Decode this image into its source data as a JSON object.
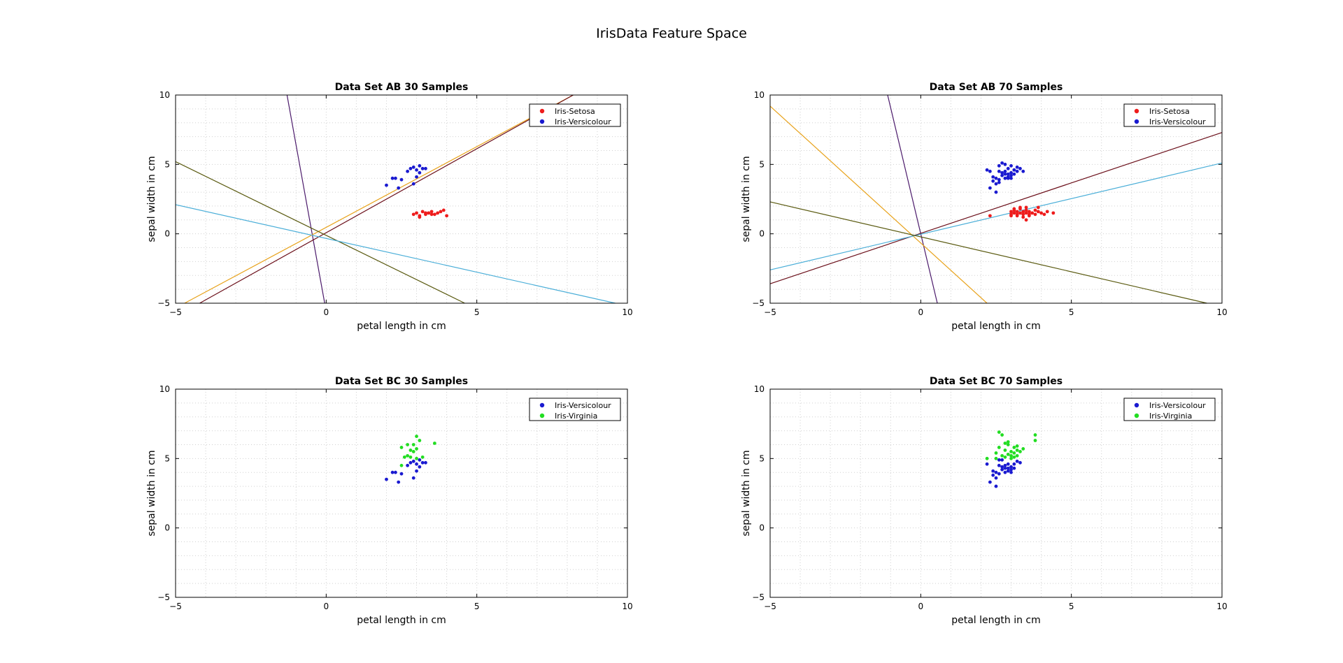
{
  "figure": {
    "title": "IrisData Feature Space",
    "colors": {
      "setosa": "#ee1c1c",
      "versicolour": "#1a1ad0",
      "virginia": "#22dd22",
      "line1": "#4b1a6b",
      "line2": "#e8a21a",
      "line3": "#6b0f1a",
      "line4": "#5a5a10",
      "line5": "#4aaed8"
    }
  },
  "chart_data": [
    {
      "type": "scatter",
      "title": "Data Set AB 30 Samples",
      "xlabel": "petal length in cm",
      "ylabel": "sepal width in cm",
      "xlim": [
        -5,
        10
      ],
      "ylim": [
        -5,
        10
      ],
      "xticks": [
        -5,
        0,
        5,
        10
      ],
      "yticks": [
        -5,
        0,
        5,
        10
      ],
      "grid": "minor-dotted",
      "legend": "top-right",
      "series": [
        {
          "name": "Iris-Setosa",
          "color": "#ee1c1c",
          "x": [
            2.9,
            3.0,
            3.1,
            3.2,
            3.3,
            3.4,
            3.5,
            3.6,
            3.7,
            3.8,
            3.9,
            4.0,
            3.1,
            3.3,
            3.5
          ],
          "y": [
            1.4,
            1.5,
            1.3,
            1.6,
            1.4,
            1.5,
            1.6,
            1.4,
            1.5,
            1.6,
            1.7,
            1.3,
            1.2,
            1.5,
            1.4
          ]
        },
        {
          "name": "Iris-Versicolour",
          "color": "#1a1ad0",
          "x": [
            2.0,
            2.2,
            2.3,
            2.4,
            2.7,
            2.8,
            2.9,
            3.0,
            3.0,
            3.1,
            3.2,
            3.3,
            2.5,
            2.9,
            3.1
          ],
          "y": [
            3.5,
            4.0,
            4.0,
            3.3,
            4.5,
            4.7,
            3.6,
            4.1,
            4.6,
            4.9,
            4.7,
            4.7,
            3.9,
            4.8,
            4.4
          ]
        }
      ],
      "lines": [
        {
          "color": "#4b1a6b",
          "p1": [
            -1.3,
            10
          ],
          "p2": [
            -0.05,
            -5
          ]
        },
        {
          "color": "#e8a21a",
          "p1": [
            -4.7,
            -5
          ],
          "p2": [
            8.2,
            10
          ]
        },
        {
          "color": "#6b0f1a",
          "p1": [
            -4.2,
            -5
          ],
          "p2": [
            8.2,
            10
          ]
        },
        {
          "color": "#5a5a10",
          "p1": [
            -5,
            5.2
          ],
          "p2": [
            4.6,
            -5
          ]
        },
        {
          "color": "#4aaed8",
          "p1": [
            -5,
            2.1
          ],
          "p2": [
            9.6,
            -5
          ]
        }
      ]
    },
    {
      "type": "scatter",
      "title": "Data Set AB 70 Samples",
      "xlabel": "petal length in cm",
      "ylabel": "sepal width in cm",
      "xlim": [
        -5,
        10
      ],
      "ylim": [
        -5,
        10
      ],
      "xticks": [
        -5,
        0,
        5,
        10
      ],
      "yticks": [
        -5,
        0,
        5,
        10
      ],
      "grid": "minor-dotted",
      "legend": "top-right",
      "series": [
        {
          "name": "Iris-Setosa",
          "color": "#ee1c1c",
          "x": [
            2.3,
            3.0,
            3.0,
            3.1,
            3.1,
            3.2,
            3.2,
            3.3,
            3.3,
            3.4,
            3.4,
            3.5,
            3.5,
            3.6,
            3.6,
            3.7,
            3.8,
            3.8,
            3.9,
            4.0,
            4.1,
            4.2,
            4.4,
            3.0,
            3.2,
            3.4,
            3.6,
            3.1,
            3.3,
            3.5,
            3.9,
            3.5
          ],
          "y": [
            1.3,
            1.4,
            1.6,
            1.5,
            1.7,
            1.4,
            1.6,
            1.5,
            1.8,
            1.4,
            1.6,
            1.5,
            1.7,
            1.4,
            1.6,
            1.5,
            1.4,
            1.7,
            1.6,
            1.5,
            1.4,
            1.6,
            1.5,
            1.3,
            1.3,
            1.2,
            1.3,
            1.8,
            1.9,
            1.9,
            1.9,
            1.0
          ]
        },
        {
          "name": "Iris-Versicolour",
          "color": "#1a1ad0",
          "x": [
            2.2,
            2.3,
            2.4,
            2.5,
            2.5,
            2.6,
            2.6,
            2.7,
            2.7,
            2.8,
            2.8,
            2.9,
            2.9,
            3.0,
            3.0,
            3.0,
            3.1,
            3.1,
            3.2,
            3.2,
            3.3,
            3.4,
            2.4,
            2.6,
            2.8,
            3.0,
            2.7,
            2.9,
            2.5,
            2.8,
            3.1,
            2.6,
            2.9,
            2.3
          ],
          "y": [
            4.6,
            3.3,
            3.8,
            3.0,
            4.0,
            4.5,
            3.9,
            4.2,
            5.1,
            4.0,
            4.5,
            4.1,
            4.7,
            4.0,
            4.4,
            4.9,
            4.3,
            4.6,
            4.5,
            4.8,
            4.7,
            4.5,
            4.1,
            4.9,
            4.3,
            4.2,
            4.4,
            4.0,
            3.6,
            5.0,
            4.6,
            3.7,
            4.3,
            4.5
          ]
        }
      ],
      "lines": [
        {
          "color": "#4b1a6b",
          "p1": [
            -1.1,
            10
          ],
          "p2": [
            0.55,
            -5
          ]
        },
        {
          "color": "#e8a21a",
          "p1": [
            -5,
            9.2
          ],
          "p2": [
            2.2,
            -5
          ]
        },
        {
          "color": "#6b0f1a",
          "p1": [
            -5,
            -3.6
          ],
          "p2": [
            10,
            7.3
          ]
        },
        {
          "color": "#4aaed8",
          "p1": [
            -5,
            -2.6
          ],
          "p2": [
            10,
            5.1
          ]
        },
        {
          "color": "#5a5a10",
          "p1": [
            -5,
            2.3
          ],
          "p2": [
            9.5,
            -5
          ]
        }
      ]
    },
    {
      "type": "scatter",
      "title": "Data Set BC 30 Samples",
      "xlabel": "petal length in cm",
      "ylabel": "sepal width in cm",
      "xlim": [
        -5,
        10
      ],
      "ylim": [
        -5,
        10
      ],
      "xticks": [
        -5,
        0,
        5,
        10
      ],
      "yticks": [
        -5,
        0,
        5,
        10
      ],
      "grid": "minor-dotted",
      "legend": "top-right",
      "series": [
        {
          "name": "Iris-Versicolour",
          "color": "#1a1ad0",
          "x": [
            2.0,
            2.2,
            2.3,
            2.4,
            2.7,
            2.8,
            2.9,
            3.0,
            3.0,
            3.1,
            3.2,
            3.3,
            2.5,
            2.9,
            3.1
          ],
          "y": [
            3.5,
            4.0,
            4.0,
            3.3,
            4.5,
            4.7,
            3.6,
            4.1,
            4.6,
            4.9,
            4.7,
            4.7,
            3.9,
            4.8,
            4.4
          ]
        },
        {
          "name": "Iris-Virginia",
          "color": "#22dd22",
          "x": [
            2.5,
            2.5,
            2.6,
            2.7,
            2.8,
            2.8,
            2.9,
            2.9,
            3.0,
            3.0,
            3.1,
            3.2,
            3.6,
            2.7,
            3.0
          ],
          "y": [
            4.5,
            5.8,
            5.1,
            5.2,
            5.6,
            5.1,
            6.0,
            5.5,
            6.6,
            5.7,
            6.3,
            5.1,
            6.1,
            6.0,
            5.0
          ]
        }
      ]
    },
    {
      "type": "scatter",
      "title": "Data Set BC 70 Samples",
      "xlabel": "petal length in cm",
      "ylabel": "sepal width in cm",
      "xlim": [
        -5,
        10
      ],
      "ylim": [
        -5,
        10
      ],
      "xticks": [
        -5,
        0,
        5,
        10
      ],
      "yticks": [
        -5,
        0,
        5,
        10
      ],
      "grid": "minor-dotted",
      "legend": "top-right",
      "series": [
        {
          "name": "Iris-Versicolour",
          "color": "#1a1ad0",
          "x": [
            2.2,
            2.3,
            2.4,
            2.5,
            2.5,
            2.6,
            2.6,
            2.7,
            2.7,
            2.8,
            2.8,
            2.9,
            2.9,
            3.0,
            3.0,
            3.1,
            3.1,
            3.2,
            3.3,
            2.4,
            2.6,
            2.8,
            3.0,
            2.5,
            2.9,
            2.7
          ],
          "y": [
            4.6,
            3.3,
            3.8,
            3.0,
            4.0,
            4.5,
            3.9,
            4.2,
            4.9,
            4.0,
            4.5,
            4.1,
            4.6,
            4.0,
            4.4,
            4.3,
            4.6,
            4.8,
            4.7,
            4.1,
            4.9,
            4.3,
            4.2,
            3.6,
            4.3,
            4.4
          ]
        },
        {
          "name": "Iris-Virginia",
          "color": "#22dd22",
          "x": [
            2.2,
            2.5,
            2.6,
            2.7,
            2.7,
            2.8,
            2.8,
            2.9,
            2.9,
            3.0,
            3.0,
            3.1,
            3.1,
            3.2,
            3.2,
            3.3,
            3.4,
            3.8,
            3.8,
            2.6,
            2.9,
            3.0,
            3.2,
            2.8,
            2.5,
            3.1
          ],
          "y": [
            5.0,
            5.0,
            6.9,
            5.2,
            6.7,
            5.1,
            5.6,
            5.3,
            6.0,
            5.0,
            5.5,
            5.8,
            5.4,
            5.6,
            5.2,
            5.5,
            5.7,
            6.7,
            6.3,
            5.8,
            6.2,
            5.2,
            5.9,
            6.1,
            5.4,
            5.1
          ]
        }
      ]
    }
  ]
}
